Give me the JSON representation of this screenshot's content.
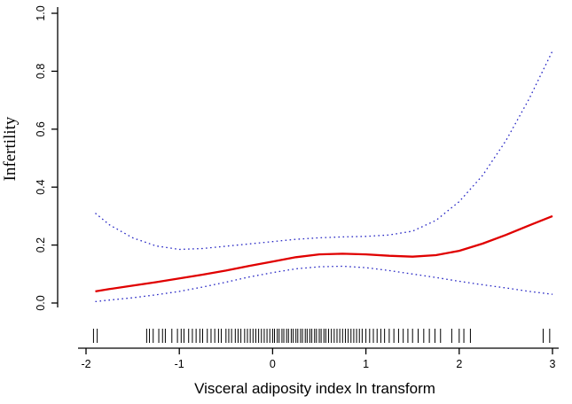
{
  "figure": {
    "background": "#ffffff"
  },
  "chart_data": {
    "type": "line",
    "title": "",
    "xlabel": "Visceral adiposity index ln transform",
    "ylabel": "Infertility",
    "xlim": [
      -2,
      3
    ],
    "ylim": [
      0,
      1
    ],
    "x_ticks": [
      -2,
      -1,
      0,
      1,
      2,
      3
    ],
    "y_ticks": [
      0.0,
      0.2,
      0.4,
      0.6,
      0.8,
      1.0
    ],
    "grid": false,
    "legend": "none",
    "axis_color": "#000000",
    "series": [
      {
        "name": "fitted-probability",
        "color": "#e00000",
        "style": "solid",
        "width": 2.3,
        "x": [
          -1.9,
          -1.75,
          -1.5,
          -1.25,
          -1.0,
          -0.75,
          -0.5,
          -0.25,
          0,
          0.25,
          0.5,
          0.75,
          1.0,
          1.25,
          1.5,
          1.75,
          2.0,
          2.25,
          2.5,
          2.75,
          3.0
        ],
        "y": [
          0.04,
          0.048,
          0.06,
          0.072,
          0.085,
          0.098,
          0.112,
          0.128,
          0.143,
          0.158,
          0.168,
          0.17,
          0.168,
          0.163,
          0.16,
          0.165,
          0.18,
          0.205,
          0.235,
          0.268,
          0.3
        ]
      },
      {
        "name": "upper-confidence-band",
        "color": "#2626c4",
        "style": "dotted",
        "width": 1.3,
        "x": [
          -1.9,
          -1.75,
          -1.5,
          -1.25,
          -1.0,
          -0.75,
          -0.5,
          -0.25,
          0,
          0.25,
          0.5,
          0.75,
          1.0,
          1.25,
          1.5,
          1.75,
          2.0,
          2.25,
          2.5,
          2.75,
          3.0
        ],
        "y": [
          0.31,
          0.27,
          0.225,
          0.197,
          0.185,
          0.188,
          0.196,
          0.204,
          0.212,
          0.22,
          0.225,
          0.228,
          0.23,
          0.235,
          0.248,
          0.285,
          0.35,
          0.44,
          0.56,
          0.705,
          0.87
        ]
      },
      {
        "name": "lower-confidence-band",
        "color": "#2626c4",
        "style": "dotted",
        "width": 1.3,
        "x": [
          -1.9,
          -1.75,
          -1.5,
          -1.25,
          -1.0,
          -0.75,
          -0.5,
          -0.25,
          0,
          0.25,
          0.5,
          0.75,
          1.0,
          1.25,
          1.5,
          1.75,
          2.0,
          2.25,
          2.5,
          2.75,
          3.0
        ],
        "y": [
          0.005,
          0.01,
          0.018,
          0.028,
          0.04,
          0.055,
          0.072,
          0.09,
          0.105,
          0.118,
          0.125,
          0.127,
          0.122,
          0.112,
          0.1,
          0.088,
          0.075,
          0.063,
          0.052,
          0.04,
          0.03
        ]
      }
    ],
    "rug": {
      "color": "#000000",
      "positions": [
        -1.92,
        -1.88,
        -1.35,
        -1.32,
        -1.28,
        -1.22,
        -1.18,
        -1.15,
        -1.08,
        -1.02,
        -0.98,
        -0.95,
        -0.9,
        -0.86,
        -0.82,
        -0.78,
        -0.75,
        -0.7,
        -0.66,
        -0.62,
        -0.58,
        -0.55,
        -0.5,
        -0.47,
        -0.44,
        -0.4,
        -0.37,
        -0.34,
        -0.3,
        -0.27,
        -0.24,
        -0.21,
        -0.18,
        -0.15,
        -0.12,
        -0.09,
        -0.06,
        -0.03,
        0.0,
        0.02,
        0.05,
        0.07,
        0.1,
        0.12,
        0.15,
        0.17,
        0.2,
        0.22,
        0.25,
        0.27,
        0.3,
        0.32,
        0.35,
        0.37,
        0.4,
        0.42,
        0.45,
        0.47,
        0.5,
        0.52,
        0.55,
        0.57,
        0.6,
        0.63,
        0.66,
        0.69,
        0.72,
        0.75,
        0.78,
        0.81,
        0.84,
        0.87,
        0.9,
        0.93,
        0.96,
        1.0,
        1.04,
        1.08,
        1.12,
        1.16,
        1.2,
        1.25,
        1.3,
        1.35,
        1.4,
        1.45,
        1.5,
        1.56,
        1.62,
        1.68,
        1.74,
        1.8,
        1.92,
        2.0,
        2.05,
        2.12,
        2.9,
        2.97
      ]
    }
  }
}
